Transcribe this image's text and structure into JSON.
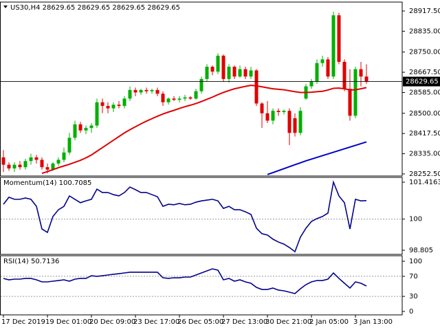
{
  "chart_data": [
    {
      "type": "candlestick",
      "title": "US30,H4  28629.65 28629.65 28629.65 28629.65",
      "categories": [
        "17 Dec 2019",
        null,
        null,
        null,
        null,
        null,
        null,
        null,
        "19 Dec 01:00",
        null,
        null,
        null,
        null,
        null,
        null,
        null,
        "20 Dec 09:00",
        null,
        null,
        null,
        null,
        null,
        null,
        null,
        "23 Dec 17:00",
        null,
        null,
        null,
        null,
        null,
        null,
        null,
        "26 Dec 05:00",
        null,
        null,
        null,
        null,
        null,
        null,
        null,
        "27 Dec 13:00",
        null,
        null,
        null,
        null,
        null,
        null,
        null,
        "30 Dec 21:00",
        null,
        null,
        null,
        null,
        null,
        null,
        null,
        "2 Jan 05:00",
        null,
        null,
        null,
        null,
        null,
        null,
        null,
        "3 Jan 13:00",
        null,
        null
      ],
      "open": [
        28320,
        28290,
        28275,
        28290,
        28280,
        28305,
        28320,
        28310,
        28280,
        28270,
        28295,
        28310,
        28340,
        28400,
        28455,
        28430,
        28440,
        28450,
        28545,
        28530,
        28520,
        28535,
        28530,
        28560,
        28595,
        28585,
        28595,
        28590,
        28595,
        28580,
        28545,
        28560,
        28555,
        28560,
        28565,
        28560,
        28590,
        28640,
        28690,
        28670,
        28735,
        28640,
        28690,
        28650,
        28680,
        28650,
        28675,
        28540,
        28500,
        28470,
        28510,
        28505,
        28510,
        28480,
        28420,
        28560,
        28610,
        28630,
        28705,
        28720,
        28650,
        28900,
        28710,
        28600,
        28490,
        28680,
        28650
      ],
      "high": [
        28350,
        28300,
        28300,
        28305,
        28315,
        28335,
        28330,
        28320,
        28295,
        28300,
        28320,
        28360,
        28420,
        28470,
        28465,
        28450,
        28460,
        28560,
        28560,
        28545,
        28545,
        28550,
        28570,
        28610,
        28605,
        28600,
        28605,
        28600,
        28605,
        28590,
        28565,
        28570,
        28570,
        28575,
        28570,
        28600,
        28650,
        28700,
        28695,
        28745,
        28740,
        28700,
        28695,
        28695,
        28690,
        28690,
        28680,
        28545,
        28550,
        28520,
        28520,
        28515,
        28520,
        28500,
        28525,
        28620,
        28640,
        28720,
        28735,
        28730,
        28915,
        28910,
        28720,
        28680,
        28690,
        28710,
        28700
      ],
      "low": [
        28260,
        28265,
        28260,
        28270,
        28270,
        28290,
        28295,
        28270,
        28255,
        28265,
        28285,
        28300,
        28330,
        28390,
        28420,
        28415,
        28420,
        28440,
        28500,
        28500,
        28505,
        28520,
        28520,
        28550,
        28570,
        28575,
        28580,
        28580,
        28570,
        28530,
        28535,
        28550,
        28545,
        28550,
        28555,
        28555,
        28580,
        28630,
        28655,
        28660,
        28630,
        28625,
        28640,
        28645,
        28640,
        28640,
        28530,
        28440,
        28460,
        28455,
        28490,
        28495,
        28370,
        28405,
        28410,
        28555,
        28600,
        28620,
        28690,
        28640,
        28640,
        28700,
        28590,
        28470,
        28480,
        28610,
        28620
      ],
      "close": [
        28290,
        28275,
        28290,
        28280,
        28305,
        28320,
        28310,
        28280,
        28270,
        28295,
        28310,
        28340,
        28400,
        28455,
        28430,
        28440,
        28450,
        28545,
        28530,
        28520,
        28535,
        28530,
        28560,
        28595,
        28585,
        28595,
        28590,
        28595,
        28580,
        28545,
        28560,
        28555,
        28560,
        28565,
        28560,
        28590,
        28640,
        28690,
        28670,
        28735,
        28640,
        28690,
        28650,
        28680,
        28650,
        28675,
        28540,
        28500,
        28470,
        28510,
        28505,
        28510,
        28420,
        28420,
        28510,
        28610,
        28630,
        28705,
        28720,
        28650,
        28900,
        28710,
        28600,
        28490,
        28680,
        28650,
        28629.65
      ],
      "up_color": "#00b000",
      "down_color": "#e00000",
      "overlays": [
        {
          "color": "#e00000",
          "values": [
            null,
            null,
            null,
            null,
            null,
            null,
            null,
            28255,
            28262,
            28270,
            28278,
            28285,
            28292,
            28300,
            28308,
            28318,
            28330,
            28345,
            28360,
            28375,
            28390,
            28405,
            28420,
            28433,
            28445,
            28457,
            28468,
            28478,
            28488,
            28497,
            28505,
            28512,
            28520,
            28527,
            28533,
            28540,
            28548,
            28557,
            28566,
            28576,
            28585,
            28593,
            28600,
            28605,
            28610,
            28614,
            28612,
            28608,
            28604,
            28600,
            28598,
            28596,
            28592,
            28588,
            28585,
            28585,
            28586,
            28588,
            28590,
            28595,
            28602,
            28603,
            28600,
            28595,
            28596,
            28600,
            28605
          ]
        },
        {
          "color": "#0000c8",
          "values": [
            null,
            null,
            null,
            null,
            null,
            null,
            null,
            null,
            null,
            null,
            null,
            null,
            null,
            null,
            null,
            null,
            null,
            null,
            null,
            null,
            null,
            null,
            null,
            null,
            null,
            null,
            null,
            null,
            null,
            null,
            null,
            null,
            null,
            null,
            null,
            null,
            null,
            null,
            null,
            null,
            null,
            null,
            null,
            null,
            null,
            null,
            null,
            null,
            28250,
            28258,
            28266,
            28274,
            28282,
            28290,
            28298,
            28306,
            28313,
            28320,
            28327,
            28334,
            28341,
            28348,
            28355,
            28362,
            28369,
            28376,
            28383
          ]
        }
      ],
      "last_price": 28629.65,
      "ylim": [
        28244,
        28954
      ],
      "yticks": [
        {
          "value": 28917.5,
          "label": "28917.50"
        },
        {
          "value": 28835,
          "label": "28835.00"
        },
        {
          "value": 28750,
          "label": "28750.00"
        },
        {
          "value": 28667.5,
          "label": "28667.50"
        },
        {
          "value": 28585,
          "label": "28585.00"
        },
        {
          "value": 28500,
          "label": "28500.00"
        },
        {
          "value": 28417.5,
          "label": "28417.50"
        },
        {
          "value": 28335,
          "label": "28335.00"
        },
        {
          "value": 28252.5,
          "label": "28252.50"
        }
      ]
    },
    {
      "type": "line",
      "title": "Momentum(14) 100.7085",
      "color": "#00008b",
      "values": [
        100.57,
        100.84,
        100.76,
        100.76,
        100.81,
        100.76,
        100.49,
        99.62,
        99.49,
        100.1,
        100.36,
        100.49,
        100.89,
        100.76,
        100.63,
        100.7,
        100.76,
        101.15,
        101.02,
        101.02,
        100.94,
        100.89,
        101.02,
        101.23,
        101.13,
        101.02,
        101.02,
        100.94,
        100.86,
        100.49,
        100.57,
        100.55,
        100.6,
        100.55,
        100.57,
        100.65,
        100.7,
        100.73,
        100.76,
        100.7,
        100.41,
        100.49,
        100.36,
        100.36,
        100.28,
        100.18,
        99.65,
        99.44,
        99.39,
        99.23,
        99.12,
        99.04,
        98.91,
        98.75,
        99.31,
        99.65,
        99.91,
        100.02,
        100.1,
        100.23,
        101.42,
        100.89,
        100.63,
        99.62,
        100.76,
        100.7,
        100.7085
      ],
      "levels": [
        100
      ],
      "ylim": [
        98.647,
        101.601
      ],
      "yticks": [
        101.4163,
        100,
        98.805
      ]
    },
    {
      "type": "line",
      "title": "RSI(14) 50.7136",
      "color": "#00008b",
      "values": [
        65.8,
        63.0,
        64.4,
        64.4,
        65.8,
        65.8,
        63.0,
        58.9,
        58.9,
        60.3,
        61.6,
        63.0,
        60.3,
        64.4,
        65.8,
        65.8,
        71.2,
        69.9,
        71.2,
        72.6,
        74.0,
        75.3,
        76.7,
        78.1,
        78.1,
        78.1,
        78.1,
        78.1,
        78.1,
        67.1,
        65.8,
        67.1,
        67.1,
        68.5,
        68.5,
        72.6,
        76.7,
        80.8,
        84.9,
        82.2,
        63.0,
        65.8,
        60.3,
        63.0,
        58.9,
        56.2,
        47.9,
        43.8,
        43.8,
        46.6,
        42.5,
        41.1,
        38.4,
        35.6,
        45.2,
        53.4,
        58.9,
        61.6,
        61.6,
        64.4,
        76.7,
        65.8,
        56.2,
        46.6,
        58.9,
        56.2,
        50.7136
      ],
      "levels": [
        30,
        70
      ],
      "ylim": [
        -6.85,
        110.96
      ],
      "yticks": [
        100,
        70,
        30,
        0
      ]
    }
  ]
}
